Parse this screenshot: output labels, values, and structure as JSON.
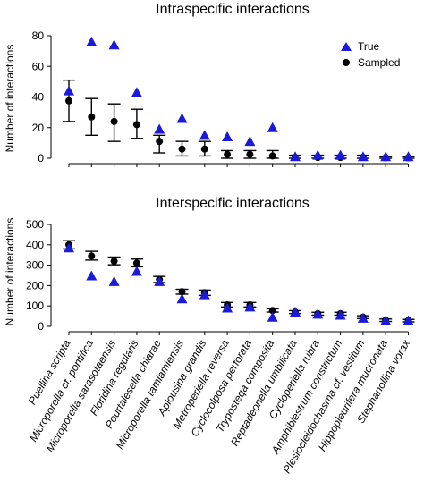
{
  "chart_data": [
    {
      "type": "scatter",
      "title": "Intraspecific interactions",
      "ylabel": "Number of interactions",
      "xlabel": "",
      "ylim": [
        0,
        85
      ],
      "yticks": [
        0,
        20,
        40,
        60,
        80
      ],
      "legend": {
        "position": "top-right",
        "entries": [
          "True",
          "Sampled"
        ]
      },
      "series": [
        {
          "name": "True",
          "marker": "triangle",
          "color": "#1a1adb",
          "values": [
            44,
            76,
            74,
            43,
            19,
            26,
            15,
            14,
            11,
            20,
            1,
            2,
            2,
            1,
            1,
            1
          ]
        },
        {
          "name": "Sampled",
          "marker": "circle",
          "color": "#000000",
          "values": [
            37.5,
            27,
            24,
            22,
            11,
            6,
            6,
            2.5,
            2.5,
            1.5,
            0.5,
            0.5,
            0.5,
            0.5,
            0.3,
            0.3
          ],
          "error_low": [
            24,
            15,
            11,
            13,
            3.5,
            1.5,
            1.5,
            0,
            0,
            0,
            0,
            0,
            0,
            0,
            0,
            0
          ],
          "error_high": [
            51,
            39,
            35.5,
            32,
            15,
            11,
            11,
            5,
            5,
            5,
            2,
            2,
            2,
            2,
            1,
            1
          ]
        }
      ]
    },
    {
      "type": "scatter",
      "title": "Interspecific interactions",
      "ylabel": "Number of interactions",
      "xlabel": "",
      "ylim": [
        0,
        500
      ],
      "yticks": [
        0,
        100,
        200,
        300,
        400,
        500
      ],
      "categories": [
        "Puellina scripta",
        "Microporella cf. pontifica",
        "Microporella sarasotaensis",
        "Floridina regularis",
        "Pourtalesella chiarae",
        "Microporella tamiamiensis",
        "Aplousina grandis",
        "Metroperiella reversa",
        "Cyclocolposa perforata",
        "Tryposteqa composita",
        "Reptadeonella umbilicata",
        "Cycloperiella rubra",
        "Amphiblestrum constrictum",
        "Plesiocleidochasma cf. vestitum",
        "Hippopleurifera mucronata",
        "Stephanollina vorax"
      ],
      "series": [
        {
          "name": "True",
          "marker": "triangle",
          "color": "#1a1adb",
          "values": [
            385,
            248,
            220,
            270,
            220,
            135,
            155,
            90,
            95,
            45,
            70,
            60,
            55,
            40,
            28,
            28
          ]
        },
        {
          "name": "Sampled",
          "marker": "circle",
          "color": "#000000",
          "values": [
            400,
            345,
            320,
            310,
            230,
            170,
            165,
            105,
            105,
            78,
            70,
            62,
            62,
            45,
            30,
            28
          ],
          "error_low": [
            380,
            325,
            302,
            292,
            215,
            158,
            152,
            95,
            95,
            70,
            63,
            55,
            55,
            38,
            24,
            22
          ],
          "error_high": [
            420,
            368,
            340,
            330,
            245,
            182,
            178,
            117,
            117,
            86,
            77,
            69,
            69,
            52,
            36,
            34
          ]
        }
      ]
    }
  ]
}
